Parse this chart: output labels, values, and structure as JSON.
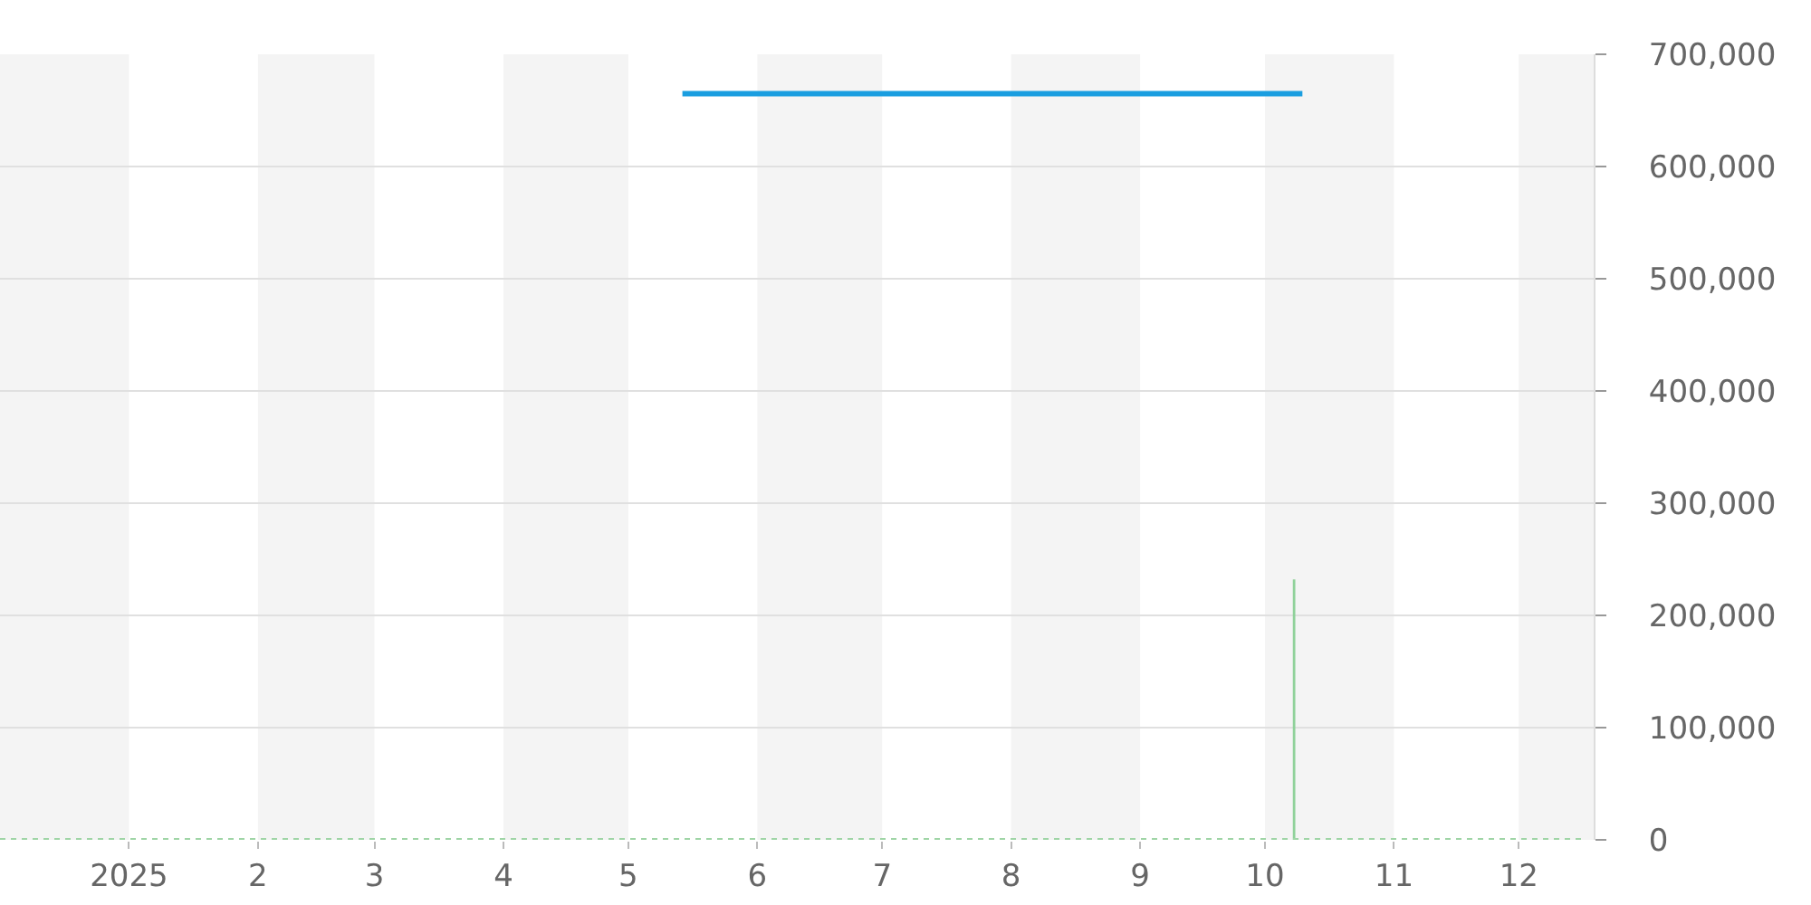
{
  "chart_data": {
    "type": "line",
    "xlim": [
      "2024-12-01",
      "2025-12-19"
    ],
    "xticks": [
      {
        "value": "2025-01-01",
        "label": "2025"
      },
      {
        "value": "2025-02-01",
        "label": "2"
      },
      {
        "value": "2025-03-01",
        "label": "3"
      },
      {
        "value": "2025-04-01",
        "label": "4"
      },
      {
        "value": "2025-05-01",
        "label": "5"
      },
      {
        "value": "2025-06-01",
        "label": "6"
      },
      {
        "value": "2025-07-01",
        "label": "7"
      },
      {
        "value": "2025-08-01",
        "label": "8"
      },
      {
        "value": "2025-09-01",
        "label": "9"
      },
      {
        "value": "2025-10-01",
        "label": "10"
      },
      {
        "value": "2025-11-01",
        "label": "11"
      },
      {
        "value": "2025-12-01",
        "label": "12"
      }
    ],
    "ylim": [
      0,
      700000
    ],
    "yticks": [
      {
        "value": 0,
        "label": "0"
      },
      {
        "value": 100000,
        "label": "100,000"
      },
      {
        "value": 200000,
        "label": "200,000"
      },
      {
        "value": 300000,
        "label": "300,000"
      },
      {
        "value": 400000,
        "label": "400,000"
      },
      {
        "value": 500000,
        "label": "500,000"
      },
      {
        "value": 600000,
        "label": "600,000"
      },
      {
        "value": 700000,
        "label": "700,000"
      }
    ],
    "grid": "y",
    "series": [
      {
        "color": "#1a9ee0",
        "x": [
          "2025-05-14",
          "2025-10-10"
        ],
        "values": [
          665000,
          665000
        ]
      },
      {
        "color": "#9fd5a6",
        "line_style": "dotted",
        "x": [
          "2024-12-01",
          "2025-12-16"
        ],
        "values": [
          0,
          0
        ]
      },
      {
        "type": "bar",
        "color": "#8fd19a",
        "x": [
          "2025-10-08"
        ],
        "values": [
          232000
        ]
      }
    ],
    "bands": [
      {
        "axis": "x",
        "from": "2024-12-01",
        "to": "2025-01-01",
        "color": "#f4f4f4"
      },
      {
        "axis": "x",
        "from": "2025-02-01",
        "to": "2025-03-01",
        "color": "#f4f4f4"
      },
      {
        "axis": "x",
        "from": "2025-04-01",
        "to": "2025-05-01",
        "color": "#f4f4f4"
      },
      {
        "axis": "x",
        "from": "2025-06-01",
        "to": "2025-07-01",
        "color": "#f4f4f4"
      },
      {
        "axis": "x",
        "from": "2025-08-01",
        "to": "2025-09-01",
        "color": "#f4f4f4"
      },
      {
        "axis": "x",
        "from": "2025-10-01",
        "to": "2025-11-01",
        "color": "#f4f4f4"
      },
      {
        "axis": "x",
        "from": "2025-12-01",
        "to": "2025-12-19",
        "color": "#f4f4f4"
      }
    ]
  }
}
